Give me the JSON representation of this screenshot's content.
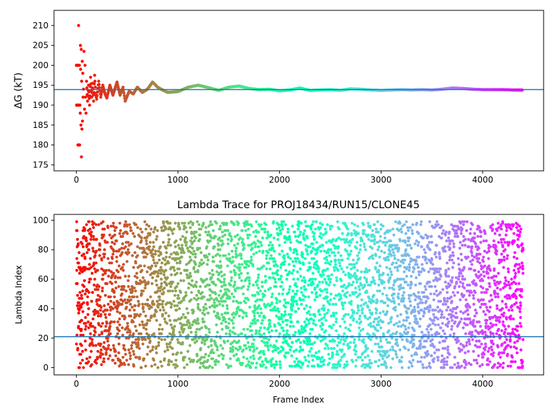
{
  "chart_data": [
    {
      "type": "scatter",
      "title": "",
      "xlabel": "",
      "ylabel": "ΔG (kT)",
      "xlim": [
        -220,
        4600
      ],
      "ylim": [
        173.5,
        213.8
      ],
      "xticks": [
        "0",
        "1000",
        "2000",
        "3000",
        "4000"
      ],
      "xtick_values": [
        0,
        1000,
        2000,
        3000,
        4000
      ],
      "yticks": [
        "175",
        "180",
        "185",
        "190",
        "195",
        "200",
        "205",
        "210"
      ],
      "ytick_values": [
        175,
        180,
        185,
        190,
        195,
        200,
        205,
        210
      ],
      "reference_line": 193.9,
      "colormap": "rainbow (red at frame 0 to violet at frame 4400)",
      "x_range": [
        0,
        4400
      ],
      "series": [
        {
          "points": [
            [
              0,
              200
            ],
            [
              2,
              190
            ],
            [
              4,
              200
            ],
            [
              5,
              190
            ],
            [
              7,
              200
            ],
            [
              8,
              190
            ],
            [
              10,
              200
            ],
            [
              12,
              190
            ],
            [
              15,
              180
            ],
            [
              18,
              200
            ],
            [
              20,
              180
            ],
            [
              22,
              210
            ],
            [
              25,
              190
            ],
            [
              28,
              180
            ],
            [
              30,
              200
            ],
            [
              32,
              180
            ],
            [
              35,
              190
            ],
            [
              38,
              188
            ],
            [
              40,
              205
            ],
            [
              42,
              199
            ],
            [
              45,
              185
            ],
            [
              48,
              204
            ],
            [
              50,
              177
            ],
            [
              52,
              196
            ],
            [
              55,
              184
            ],
            [
              58,
              201
            ],
            [
              60,
              186
            ],
            [
              63,
              198
            ],
            [
              66,
              192
            ],
            [
              70,
              194
            ],
            [
              75,
              203.5
            ],
            [
              80,
              189
            ],
            [
              85,
              200
            ],
            [
              90,
              192
            ],
            [
              95,
              188
            ],
            [
              100,
              196
            ],
            [
              110,
              191
            ],
            [
              120,
              195
            ],
            [
              130,
              190
            ],
            [
              140,
              197
            ],
            [
              150,
              192
            ],
            [
              160,
              195.5
            ],
            [
              170,
              191
            ],
            [
              180,
              197.5
            ],
            [
              190,
              193
            ],
            [
              200,
              191.5
            ],
            [
              220,
              196
            ],
            [
              240,
              192
            ],
            [
              260,
              195
            ],
            [
              280,
              193
            ],
            [
              300,
              191.8
            ],
            [
              330,
              195
            ],
            [
              360,
              192.5
            ],
            [
              400,
              195.8
            ],
            [
              430,
              192.5
            ],
            [
              460,
              194.5
            ],
            [
              480,
              191
            ],
            [
              520,
              193.5
            ],
            [
              560,
              192.8
            ],
            [
              600,
              194.5
            ],
            [
              650,
              193.2
            ],
            [
              700,
              194
            ],
            [
              750,
              195.8
            ],
            [
              800,
              194.5
            ],
            [
              850,
              193.8
            ],
            [
              900,
              193.2
            ],
            [
              1000,
              193.4
            ],
            [
              1100,
              194.5
            ],
            [
              1200,
              195
            ],
            [
              1300,
              194.4
            ],
            [
              1400,
              193.7
            ],
            [
              1500,
              194.5
            ],
            [
              1600,
              194.8
            ],
            [
              1700,
              194.2
            ],
            [
              1800,
              193.9
            ],
            [
              1900,
              194
            ],
            [
              2000,
              193.6
            ],
            [
              2100,
              193.8
            ],
            [
              2200,
              194.3
            ],
            [
              2300,
              193.7
            ],
            [
              2400,
              193.8
            ],
            [
              2500,
              193.9
            ],
            [
              2600,
              193.7
            ],
            [
              2700,
              194.1
            ],
            [
              2800,
              194
            ],
            [
              2900,
              193.8
            ],
            [
              3000,
              193.7
            ],
            [
              3100,
              193.8
            ],
            [
              3200,
              193.9
            ],
            [
              3300,
              193.8
            ],
            [
              3400,
              193.9
            ],
            [
              3500,
              193.8
            ],
            [
              3600,
              194
            ],
            [
              3700,
              194.3
            ],
            [
              3800,
              194.2
            ],
            [
              3900,
              194
            ],
            [
              4000,
              193.9
            ],
            [
              4100,
              193.9
            ],
            [
              4200,
              193.9
            ],
            [
              4300,
              193.8
            ],
            [
              4390,
              193.8
            ]
          ]
        }
      ]
    },
    {
      "type": "scatter",
      "title": "Lambda Trace for PROJ18434/RUN15/CLONE45",
      "xlabel": "Frame Index",
      "ylabel": "Lambda Index",
      "xlim": [
        -220,
        4600
      ],
      "ylim": [
        -4.95,
        103.95
      ],
      "xticks": [
        "0",
        "1000",
        "2000",
        "3000",
        "4000"
      ],
      "xtick_values": [
        0,
        1000,
        2000,
        3000,
        4000
      ],
      "yticks": [
        "0",
        "20",
        "40",
        "60",
        "80",
        "100"
      ],
      "ytick_values": [
        0,
        20,
        40,
        60,
        80,
        100
      ],
      "reference_line": 21,
      "colormap": "rainbow (red at frame 0 to violet at frame 4400)",
      "x_range": [
        0,
        4400
      ],
      "lambda_range": [
        0,
        99
      ],
      "frame_count": 4400,
      "frame_step": 1
    }
  ]
}
